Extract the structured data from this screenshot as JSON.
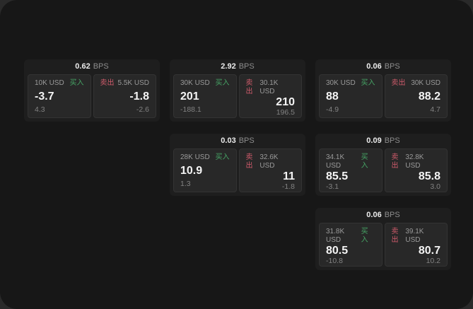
{
  "labels": {
    "bps_unit": "BPS",
    "buy": "买入",
    "sell": "卖出"
  },
  "colors": {
    "buy_green": "#46a465",
    "sell_red": "#cf5b6b"
  },
  "cards": [
    {
      "bps": "0.62",
      "buy": {
        "amount": "10K USD",
        "value": "-3.7",
        "sub": "4.3"
      },
      "sell": {
        "amount": "5.5K USD",
        "value": "-1.8",
        "sub": "-2.6"
      }
    },
    {
      "bps": "2.92",
      "buy": {
        "amount": "30K USD",
        "value": "201",
        "sub": "-188.1"
      },
      "sell": {
        "amount": "30.1K USD",
        "value": "210",
        "sub": "196.5"
      }
    },
    {
      "bps": "0.06",
      "buy": {
        "amount": "30K USD",
        "value": "88",
        "sub": "-4.9"
      },
      "sell": {
        "amount": "30K USD",
        "value": "88.2",
        "sub": "4.7"
      }
    },
    {
      "bps": "0.03",
      "buy": {
        "amount": "28K USD",
        "value": "10.9",
        "sub": "1.3"
      },
      "sell": {
        "amount": "32.6K USD",
        "value": "11",
        "sub": "-1.8"
      }
    },
    {
      "bps": "0.09",
      "buy": {
        "amount": "34.1K USD",
        "value": "85.5",
        "sub": "-3.1"
      },
      "sell": {
        "amount": "32.8K USD",
        "value": "85.8",
        "sub": "3.0"
      }
    },
    {
      "bps": "0.06",
      "buy": {
        "amount": "31.8K USD",
        "value": "80.5",
        "sub": "-10.8"
      },
      "sell": {
        "amount": "39.1K USD",
        "value": "80.7",
        "sub": "10.2"
      }
    }
  ]
}
